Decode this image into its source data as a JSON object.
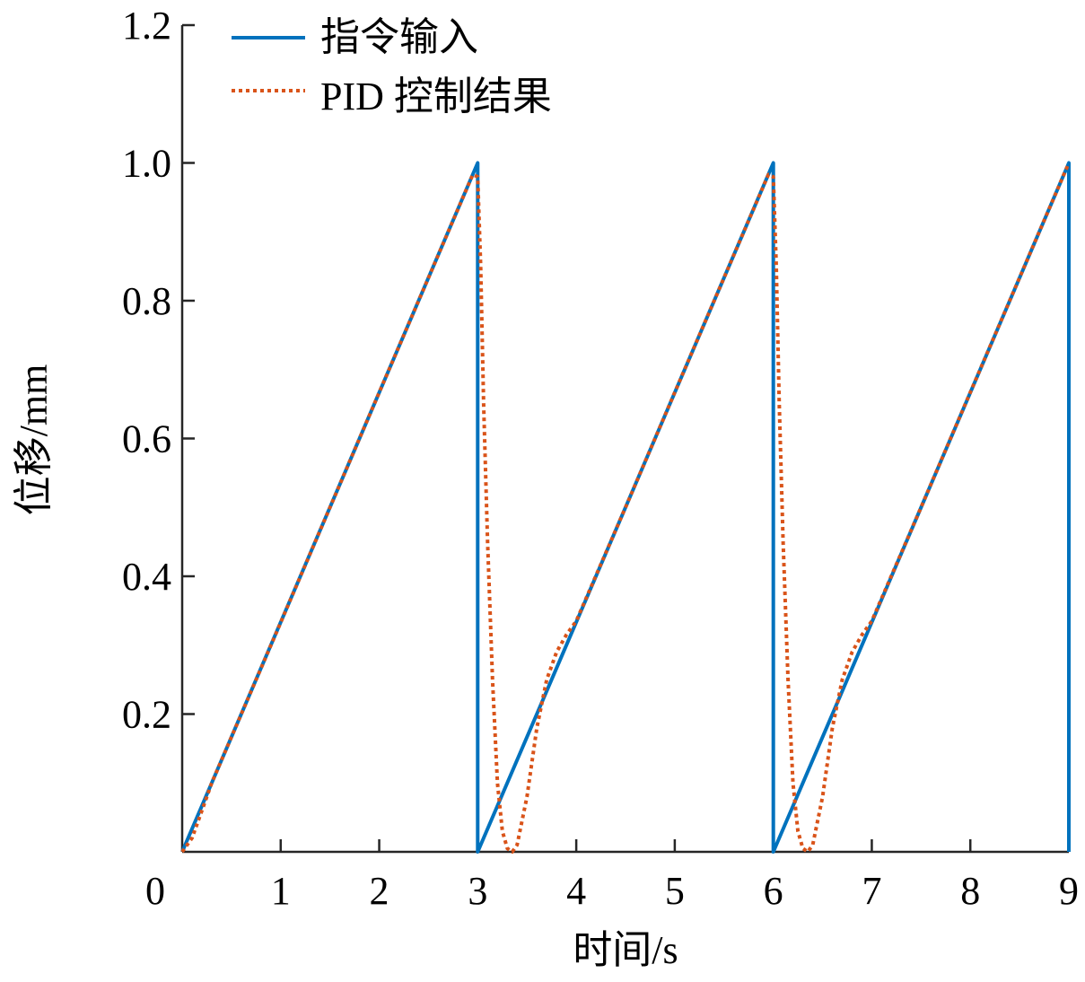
{
  "chart_data": {
    "type": "line",
    "xlabel": "时间/s",
    "ylabel": "位移/mm",
    "xlim": [
      0,
      9
    ],
    "ylim": [
      0,
      1.2
    ],
    "x_ticks": [
      "0",
      "1",
      "2",
      "3",
      "4",
      "5",
      "6",
      "7",
      "8",
      "9"
    ],
    "y_ticks": [
      "0.2",
      "0.4",
      "0.6",
      "0.8",
      "1.0",
      "1.2"
    ],
    "grid": false,
    "legend_position": "top-left",
    "series": [
      {
        "name": "指令输入",
        "color": "#0072BD",
        "style": "solid",
        "x": [
          0,
          3,
          3,
          6,
          6,
          9,
          9
        ],
        "y": [
          0,
          1.0,
          0,
          1.0,
          0,
          1.0,
          0
        ]
      },
      {
        "name": "PID 控制结果",
        "color": "#D95319",
        "style": "dotted",
        "x": [
          0,
          0.1,
          0.2,
          0.3,
          1.0,
          2.0,
          2.95,
          3.0,
          3.03,
          3.06,
          3.1,
          3.15,
          3.2,
          3.25,
          3.3,
          3.35,
          3.4,
          3.5,
          3.6,
          3.7,
          3.8,
          3.9,
          4.0,
          4.5,
          5.0,
          5.95,
          6.0,
          6.03,
          6.06,
          6.1,
          6.15,
          6.2,
          6.25,
          6.3,
          6.35,
          6.4,
          6.5,
          6.6,
          6.7,
          6.8,
          6.9,
          7.0,
          7.5,
          8.0,
          9.0
        ],
        "y": [
          0,
          0.02,
          0.06,
          0.1,
          0.333,
          0.667,
          0.983,
          0.98,
          0.85,
          0.65,
          0.45,
          0.25,
          0.1,
          0.03,
          0.005,
          0.0,
          0.01,
          0.08,
          0.18,
          0.25,
          0.29,
          0.315,
          0.335,
          0.5,
          0.667,
          0.983,
          0.98,
          0.85,
          0.65,
          0.45,
          0.25,
          0.1,
          0.03,
          0.005,
          0.0,
          0.01,
          0.08,
          0.18,
          0.25,
          0.29,
          0.315,
          0.335,
          0.5,
          0.667,
          1.0
        ]
      }
    ]
  }
}
